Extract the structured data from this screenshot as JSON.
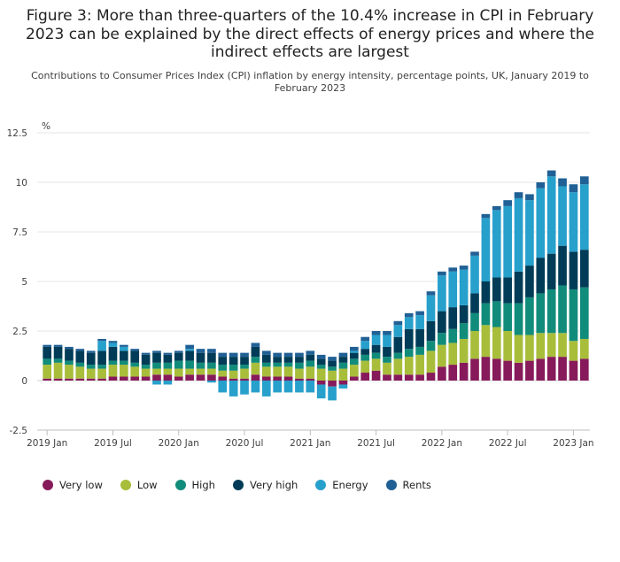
{
  "chart_data": {
    "type": "bar",
    "stacked": true,
    "title": "Figure 3: More than three-quarters of the 10.4% increase in CPI in February 2023 can be explained by the direct effects of energy prices and where the indirect effects are largest",
    "subtitle": "Contributions to Consumer Prices Index (CPI) inflation by energy intensity, percentage points, UK, January 2019 to February 2023",
    "ylabel": "%",
    "ylim": [
      -2.5,
      12.5
    ],
    "yticks": [
      "12.5",
      "10",
      "7.5",
      "5",
      "2.5",
      "0",
      "-2.5"
    ],
    "ytick_values": [
      12.5,
      10,
      7.5,
      5,
      2.5,
      0,
      -2.5
    ],
    "x_tick_labels": [
      "2019 Jan",
      "2019 Jul",
      "2020 Jan",
      "2020 Jul",
      "2021 Jan",
      "2021 Jul",
      "2022 Jan",
      "2022 Jul",
      "2023 Jan"
    ],
    "x_tick_indices": [
      0,
      6,
      12,
      18,
      24,
      30,
      36,
      42,
      48
    ],
    "grid": true,
    "legend_position": "bottom-left",
    "categories": [
      "2019-01",
      "2019-02",
      "2019-03",
      "2019-04",
      "2019-05",
      "2019-06",
      "2019-07",
      "2019-08",
      "2019-09",
      "2019-10",
      "2019-11",
      "2019-12",
      "2020-01",
      "2020-02",
      "2020-03",
      "2020-04",
      "2020-05",
      "2020-06",
      "2020-07",
      "2020-08",
      "2020-09",
      "2020-10",
      "2020-11",
      "2020-12",
      "2021-01",
      "2021-02",
      "2021-03",
      "2021-04",
      "2021-05",
      "2021-06",
      "2021-07",
      "2021-08",
      "2021-09",
      "2021-10",
      "2021-11",
      "2021-12",
      "2022-01",
      "2022-02",
      "2022-03",
      "2022-04",
      "2022-05",
      "2022-06",
      "2022-07",
      "2022-08",
      "2022-09",
      "2022-10",
      "2022-11",
      "2022-12",
      "2023-01",
      "2023-02"
    ],
    "series": [
      {
        "name": "Very low",
        "color": "#871a5b",
        "values": [
          0.1,
          0.1,
          0.1,
          0.1,
          0.1,
          0.1,
          0.2,
          0.2,
          0.2,
          0.2,
          0.3,
          0.3,
          0.2,
          0.3,
          0.3,
          0.3,
          0.2,
          0.1,
          0.1,
          0.3,
          0.2,
          0.2,
          0.2,
          0.1,
          0.1,
          -0.2,
          -0.3,
          -0.2,
          0.2,
          0.4,
          0.5,
          0.3,
          0.3,
          0.3,
          0.3,
          0.4,
          0.7,
          0.8,
          0.9,
          1.1,
          1.2,
          1.1,
          1.0,
          0.9,
          1.0,
          1.1,
          1.2,
          1.2,
          1.0,
          1.1
        ]
      },
      {
        "name": "Low",
        "color": "#a8bd3a",
        "values": [
          0.7,
          0.8,
          0.7,
          0.6,
          0.5,
          0.5,
          0.6,
          0.6,
          0.5,
          0.4,
          0.3,
          0.3,
          0.4,
          0.3,
          0.3,
          0.3,
          0.3,
          0.4,
          0.5,
          0.6,
          0.5,
          0.5,
          0.5,
          0.5,
          0.6,
          0.6,
          0.5,
          0.6,
          0.6,
          0.6,
          0.6,
          0.6,
          0.8,
          0.9,
          1.0,
          1.1,
          1.1,
          1.1,
          1.2,
          1.4,
          1.6,
          1.6,
          1.5,
          1.4,
          1.3,
          1.3,
          1.2,
          1.2,
          1.0,
          1.0
        ]
      },
      {
        "name": "High",
        "color": "#118c7b",
        "values": [
          0.3,
          0.2,
          0.2,
          0.2,
          0.2,
          0.2,
          0.2,
          0.2,
          0.2,
          0.2,
          0.3,
          0.3,
          0.4,
          0.4,
          0.3,
          0.3,
          0.3,
          0.3,
          0.2,
          0.3,
          0.2,
          0.2,
          0.2,
          0.3,
          0.3,
          0.2,
          0.2,
          0.3,
          0.3,
          0.3,
          0.3,
          0.3,
          0.3,
          0.4,
          0.4,
          0.5,
          0.6,
          0.7,
          0.8,
          0.9,
          1.1,
          1.3,
          1.4,
          1.6,
          1.9,
          2.0,
          2.2,
          2.4,
          2.6,
          2.6
        ]
      },
      {
        "name": "Very high",
        "color": "#003c57",
        "values": [
          0.6,
          0.6,
          0.6,
          0.6,
          0.6,
          0.7,
          0.7,
          0.5,
          0.6,
          0.5,
          0.5,
          0.4,
          0.4,
          0.5,
          0.5,
          0.5,
          0.4,
          0.4,
          0.4,
          0.5,
          0.4,
          0.3,
          0.3,
          0.3,
          0.3,
          0.3,
          0.3,
          0.3,
          0.3,
          0.3,
          0.4,
          0.5,
          0.8,
          1.0,
          0.9,
          1.0,
          1.1,
          1.1,
          0.9,
          1.0,
          1.1,
          1.2,
          1.3,
          1.6,
          1.6,
          1.8,
          1.8,
          2.0,
          1.9,
          1.9
        ]
      },
      {
        "name": "Energy",
        "color": "#27a0cc",
        "values": [
          0.0,
          0.0,
          0.0,
          0.0,
          0.0,
          0.5,
          0.2,
          0.2,
          0.0,
          0.0,
          -0.2,
          -0.2,
          0.0,
          0.1,
          0.0,
          -0.1,
          -0.6,
          -0.8,
          -0.7,
          -0.6,
          -0.8,
          -0.6,
          -0.6,
          -0.6,
          -0.6,
          -0.7,
          -0.7,
          -0.2,
          0.1,
          0.4,
          0.5,
          0.6,
          0.6,
          0.6,
          0.7,
          1.3,
          1.8,
          1.8,
          1.8,
          1.9,
          3.2,
          3.4,
          3.6,
          3.7,
          3.3,
          3.5,
          3.9,
          3.0,
          3.0,
          3.3
        ]
      },
      {
        "name": "Rents",
        "color": "#206095",
        "values": [
          0.1,
          0.1,
          0.1,
          0.1,
          0.1,
          0.1,
          0.1,
          0.1,
          0.1,
          0.1,
          0.1,
          0.1,
          0.1,
          0.2,
          0.2,
          0.2,
          0.2,
          0.2,
          0.2,
          0.2,
          0.2,
          0.2,
          0.2,
          0.2,
          0.2,
          0.2,
          0.2,
          0.2,
          0.2,
          0.2,
          0.2,
          0.2,
          0.2,
          0.2,
          0.2,
          0.2,
          0.2,
          0.2,
          0.2,
          0.2,
          0.2,
          0.2,
          0.3,
          0.3,
          0.3,
          0.3,
          0.3,
          0.4,
          0.4,
          0.4
        ]
      }
    ]
  }
}
